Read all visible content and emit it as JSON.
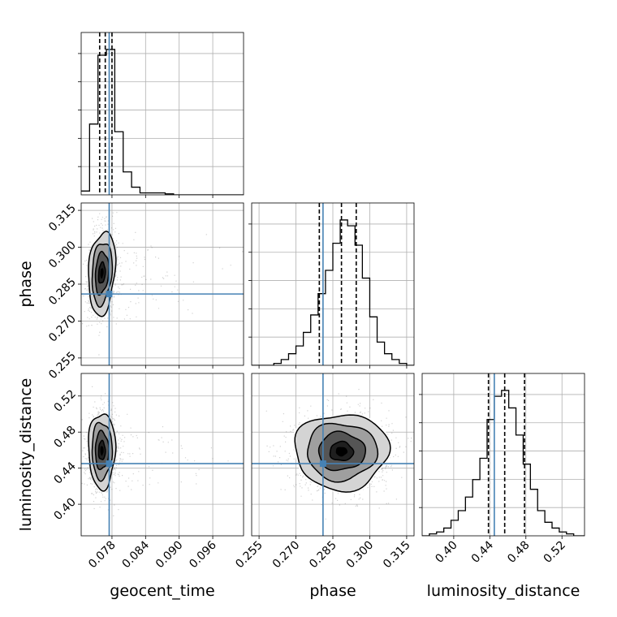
{
  "chart_data": {
    "type": "corner",
    "parameters": [
      "geocent_time",
      "phase",
      "luminosity_distance"
    ],
    "truth": {
      "geocent_time": 0.0775,
      "phase": 0.281,
      "luminosity_distance": 0.445
    },
    "ranges": {
      "geocent_time": [
        0.0725,
        0.1015
      ],
      "phase": [
        0.252,
        0.318
      ],
      "luminosity_distance": [
        0.365,
        0.545
      ]
    },
    "ticks": {
      "geocent_time": {
        "values": [
          0.078,
          0.084,
          0.09,
          0.096
        ],
        "labels": [
          "0.078",
          "0.084",
          "0.090",
          "0.096"
        ]
      },
      "phase": {
        "values": [
          0.255,
          0.27,
          0.285,
          0.3,
          0.315
        ],
        "labels": [
          "0.255",
          "0.270",
          "0.285",
          "0.300",
          "0.315"
        ]
      },
      "luminosity_distance": {
        "values": [
          0.4,
          0.44,
          0.48,
          0.52
        ],
        "labels": [
          "0.40",
          "0.44",
          "0.48",
          "0.52"
        ]
      }
    },
    "quantiles": {
      "geocent_time": [
        0.0758,
        0.0768,
        0.078
      ],
      "phase": [
        0.2795,
        0.2885,
        0.2945
      ],
      "luminosity_distance": [
        0.4385,
        0.4565,
        0.4785
      ]
    },
    "histograms": {
      "geocent_time": {
        "bin_edges": [
          0.0725,
          0.074,
          0.0755,
          0.077,
          0.0785,
          0.08,
          0.0815,
          0.083,
          0.0845,
          0.086,
          0.0875,
          0.089,
          0.0905,
          0.092,
          0.0935,
          0.095,
          0.0965,
          0.098,
          0.0995,
          0.1015
        ],
        "counts": [
          2,
          37,
          73,
          76,
          33,
          12,
          4,
          1,
          1,
          1,
          0.5,
          0,
          0,
          0,
          0,
          0,
          0,
          0,
          0
        ]
      },
      "phase": {
        "bin_edges": [
          0.252,
          0.255,
          0.258,
          0.261,
          0.264,
          0.267,
          0.27,
          0.273,
          0.276,
          0.279,
          0.282,
          0.285,
          0.288,
          0.291,
          0.294,
          0.297,
          0.3,
          0.303,
          0.306,
          0.309,
          0.312,
          0.315,
          0.318
        ],
        "counts": [
          0,
          0,
          0,
          1,
          3,
          6,
          10,
          17,
          26,
          37,
          49,
          63,
          75,
          72,
          62,
          45,
          25,
          12,
          6,
          3,
          1,
          0
        ]
      },
      "luminosity_distance": {
        "bin_edges": [
          0.365,
          0.373,
          0.381,
          0.389,
          0.397,
          0.405,
          0.413,
          0.421,
          0.429,
          0.437,
          0.445,
          0.453,
          0.461,
          0.469,
          0.477,
          0.485,
          0.493,
          0.501,
          0.509,
          0.517,
          0.525,
          0.533,
          0.545
        ],
        "counts": [
          0,
          1,
          2,
          4,
          8,
          13,
          20,
          29,
          40,
          60,
          72,
          75,
          66,
          52,
          37,
          24,
          13,
          7,
          4,
          2,
          1,
          0
        ]
      }
    },
    "contours_2d": {
      "phase_vs_geocent_time": {
        "mean": [
          0.0762,
          0.2895
        ],
        "sd": [
          0.0012,
          0.0085
        ],
        "corr": 0.2
      },
      "luminosity_distance_vs_geocent_time": {
        "mean": [
          0.0762,
          0.4595
        ],
        "sd": [
          0.0012,
          0.021
        ],
        "corr": 0.0
      },
      "luminosity_distance_vs_phase": {
        "mean": [
          0.2885,
          0.4585
        ],
        "sd": [
          0.0095,
          0.021
        ],
        "corr": 0.0
      }
    },
    "levels_sigma": [
      0.5,
      1.0,
      1.5,
      2.0
    ],
    "colors": {
      "truth": "#4682b4",
      "contour": "#000000",
      "grid": "#b0b0b0",
      "scatter": "#000000"
    },
    "grid": true
  }
}
